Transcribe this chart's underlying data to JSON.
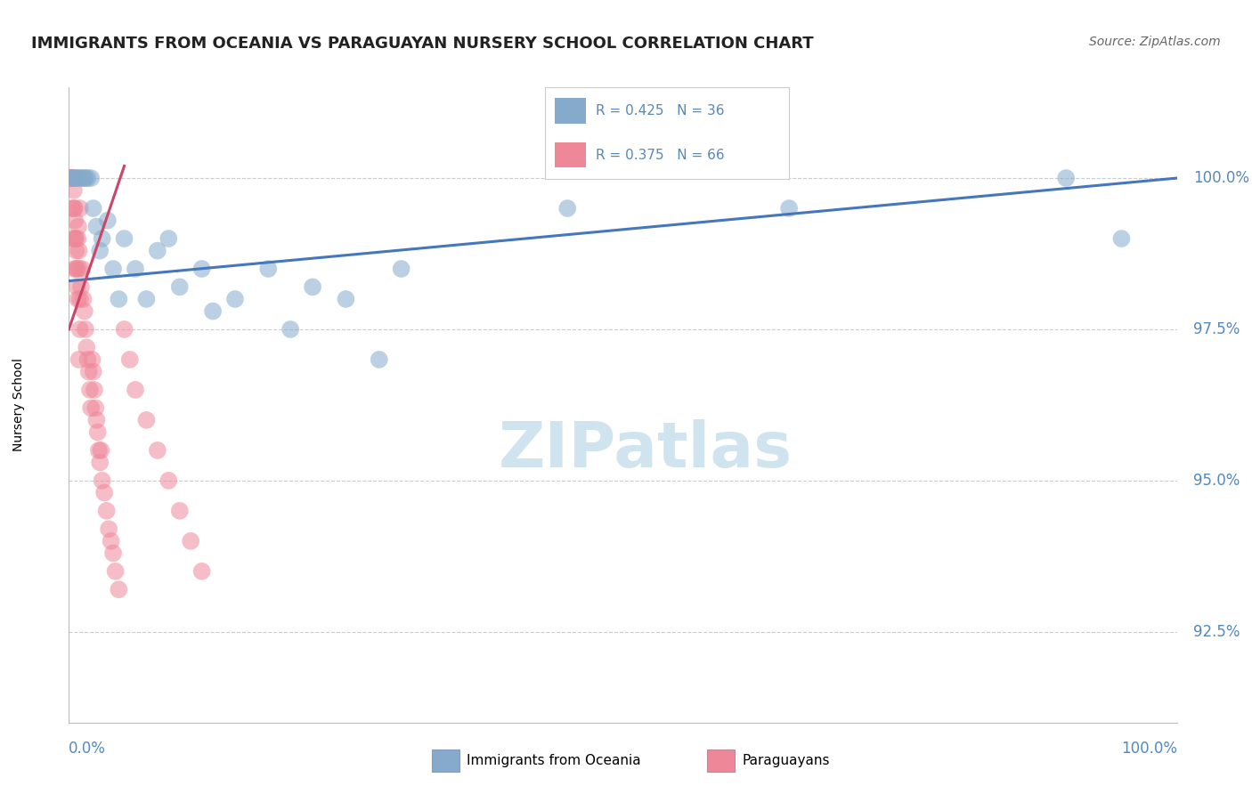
{
  "title": "IMMIGRANTS FROM OCEANIA VS PARAGUAYAN NURSERY SCHOOL CORRELATION CHART",
  "source": "Source: ZipAtlas.com",
  "xlim": [
    0.0,
    100.0
  ],
  "ylim": [
    91.0,
    101.5
  ],
  "yticks": [
    92.5,
    95.0,
    97.5,
    100.0
  ],
  "ytick_labels": [
    "92.5%",
    "95.0%",
    "97.5%",
    "100.0%"
  ],
  "blue_color": "#85AACC",
  "pink_color": "#EE8899",
  "trendline_blue": "#4477BB",
  "trendline_pink": "#CC4466",
  "legend_r_blue": "R = 0.425",
  "legend_n_blue": "N = 36",
  "legend_r_pink": "R = 0.375",
  "legend_n_pink": "N = 66",
  "blue_scatter_x": [
    0.3,
    0.5,
    0.7,
    0.8,
    1.0,
    1.2,
    1.4,
    1.5,
    1.7,
    2.0,
    2.2,
    2.5,
    2.8,
    3.0,
    3.5,
    4.0,
    4.5,
    5.0,
    6.0,
    7.0,
    8.0,
    9.0,
    10.0,
    12.0,
    13.0,
    15.0,
    18.0,
    20.0,
    25.0,
    28.0,
    45.0,
    65.0,
    90.0,
    95.0,
    30.0,
    22.0
  ],
  "blue_scatter_y": [
    100.0,
    100.0,
    100.0,
    100.0,
    100.0,
    100.0,
    100.0,
    100.0,
    100.0,
    100.0,
    99.5,
    99.2,
    98.8,
    99.0,
    99.3,
    98.5,
    98.0,
    99.0,
    98.5,
    98.0,
    98.8,
    99.0,
    98.2,
    98.5,
    97.8,
    98.0,
    98.5,
    97.5,
    98.0,
    97.0,
    99.5,
    99.5,
    100.0,
    99.0,
    98.5,
    98.2
  ],
  "pink_scatter_x": [
    0.1,
    0.15,
    0.2,
    0.25,
    0.3,
    0.35,
    0.4,
    0.45,
    0.5,
    0.55,
    0.6,
    0.65,
    0.7,
    0.75,
    0.8,
    0.85,
    0.9,
    0.95,
    1.0,
    1.0,
    1.1,
    1.2,
    1.3,
    1.4,
    1.5,
    1.6,
    1.7,
    1.8,
    1.9,
    2.0,
    2.1,
    2.2,
    2.3,
    2.4,
    2.5,
    2.6,
    2.7,
    2.8,
    2.9,
    3.0,
    3.2,
    3.4,
    3.6,
    3.8,
    4.0,
    4.2,
    4.5,
    5.0,
    5.5,
    6.0,
    7.0,
    8.0,
    9.0,
    10.0,
    11.0,
    12.0,
    0.2,
    0.3,
    0.4,
    0.5,
    0.6,
    0.5,
    0.8,
    1.0,
    0.7,
    0.9
  ],
  "pink_scatter_y": [
    100.0,
    100.0,
    100.0,
    100.0,
    100.0,
    100.0,
    100.0,
    99.8,
    99.5,
    99.3,
    99.0,
    98.8,
    98.5,
    98.2,
    99.0,
    99.2,
    98.8,
    98.5,
    98.0,
    99.5,
    98.2,
    98.5,
    98.0,
    97.8,
    97.5,
    97.2,
    97.0,
    96.8,
    96.5,
    96.2,
    97.0,
    96.8,
    96.5,
    96.2,
    96.0,
    95.8,
    95.5,
    95.3,
    95.5,
    95.0,
    94.8,
    94.5,
    94.2,
    94.0,
    93.8,
    93.5,
    93.2,
    97.5,
    97.0,
    96.5,
    96.0,
    95.5,
    95.0,
    94.5,
    94.0,
    93.5,
    100.0,
    99.5,
    99.0,
    99.5,
    99.0,
    98.5,
    98.0,
    97.5,
    98.5,
    97.0
  ],
  "trendline_blue_x0": 0.0,
  "trendline_blue_y0": 98.3,
  "trendline_blue_x1": 100.0,
  "trendline_blue_y1": 100.0,
  "trendline_pink_x0": 0.0,
  "trendline_pink_y0": 97.5,
  "trendline_pink_x1": 5.0,
  "trendline_pink_y1": 100.2,
  "watermark_color": "#D0E4F0",
  "axis_color": "#BBBBBB",
  "grid_color": "#CCCCCC",
  "tick_color": "#5588BB",
  "title_color": "#222222",
  "source_color": "#666666"
}
